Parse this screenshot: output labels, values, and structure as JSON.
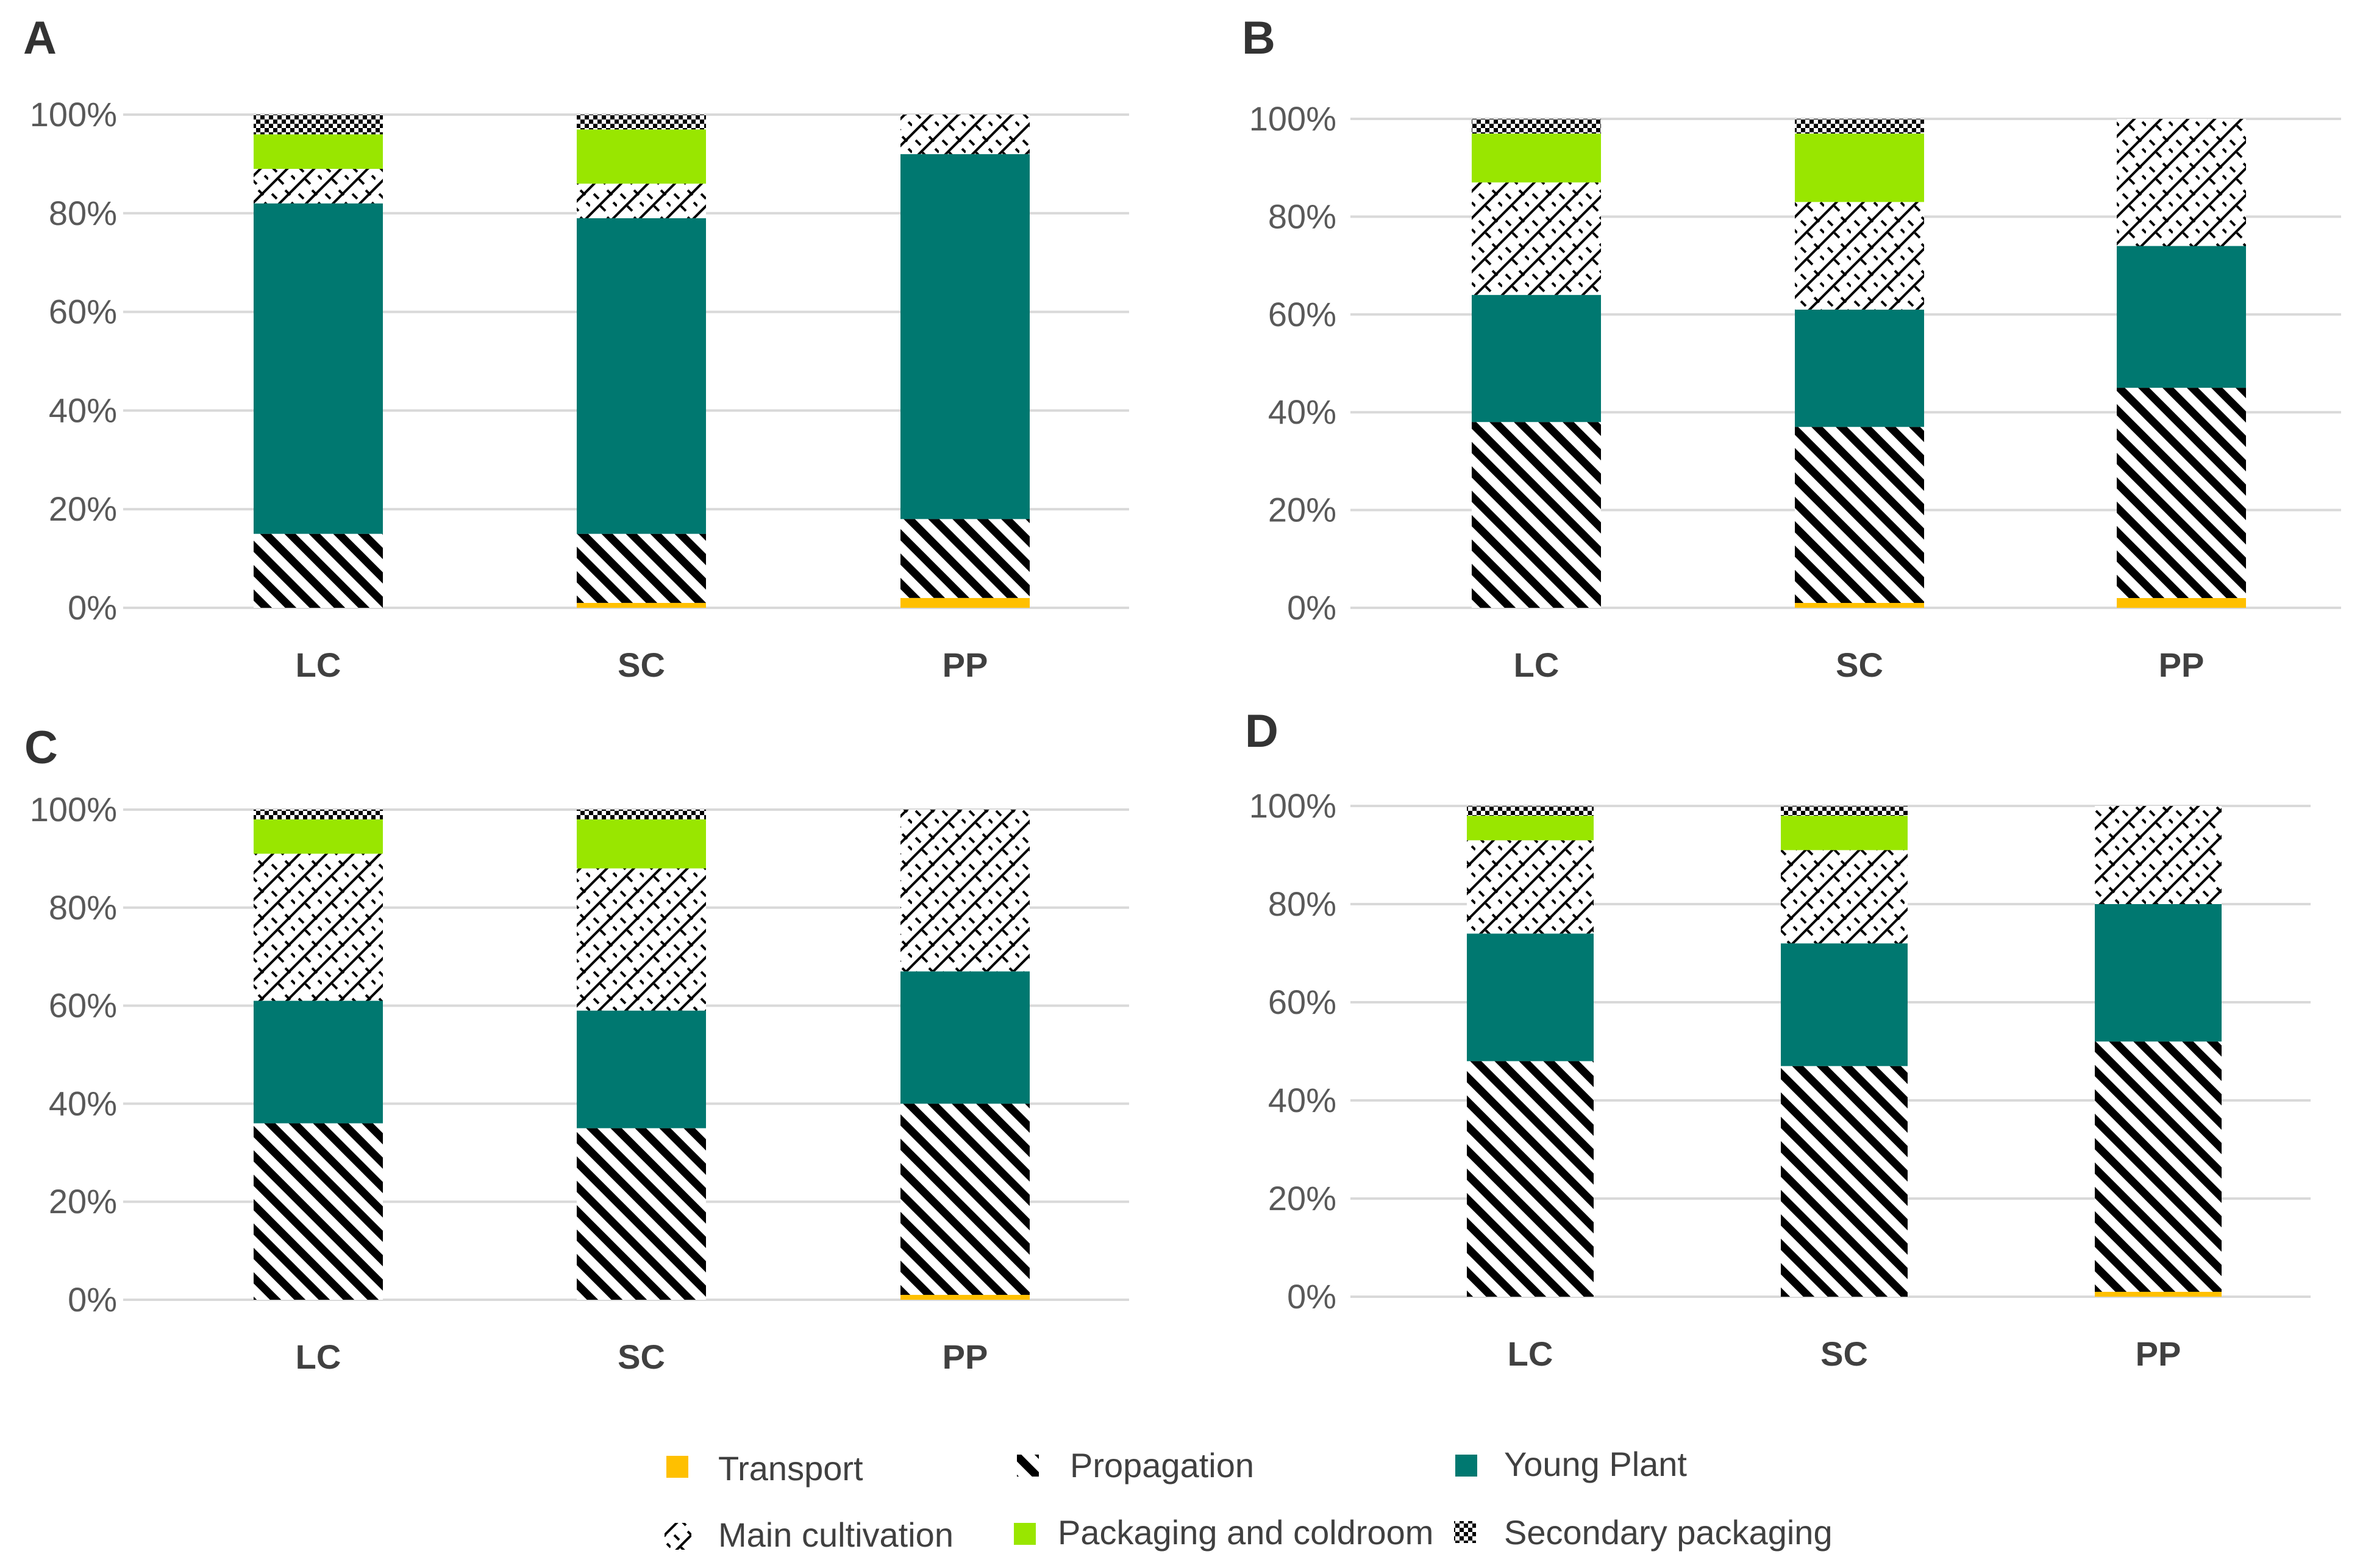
{
  "chart_data": [
    {
      "panel": "A",
      "type": "bar",
      "stacked": true,
      "ylim": [
        0,
        100
      ],
      "yticks": [
        "0%",
        "20%",
        "40%",
        "60%",
        "80%",
        "100%"
      ],
      "categories": [
        "LC",
        "SC",
        "PP"
      ],
      "series": [
        {
          "name": "Transport",
          "values": [
            0,
            1,
            2
          ]
        },
        {
          "name": "Propagation",
          "values": [
            15,
            14,
            16
          ]
        },
        {
          "name": "Young Plant",
          "values": [
            67,
            64,
            74
          ]
        },
        {
          "name": "Main cultivation",
          "values": [
            7,
            7,
            8
          ]
        },
        {
          "name": "Packaging and coldroom",
          "values": [
            7,
            11,
            0
          ]
        },
        {
          "name": "Secondary packaging",
          "values": [
            4,
            3,
            0
          ]
        }
      ]
    },
    {
      "panel": "B",
      "type": "bar",
      "stacked": true,
      "ylim": [
        0,
        100
      ],
      "yticks": [
        "0%",
        "20%",
        "40%",
        "60%",
        "80%",
        "100%"
      ],
      "categories": [
        "LC",
        "SC",
        "PP"
      ],
      "series": [
        {
          "name": "Transport",
          "values": [
            0,
            1,
            2
          ]
        },
        {
          "name": "Propagation",
          "values": [
            38,
            36,
            43
          ]
        },
        {
          "name": "Young Plant",
          "values": [
            26,
            24,
            29
          ]
        },
        {
          "name": "Main cultivation",
          "values": [
            23,
            22,
            26
          ]
        },
        {
          "name": "Packaging and coldroom",
          "values": [
            10,
            14,
            0
          ]
        },
        {
          "name": "Secondary packaging",
          "values": [
            3,
            3,
            0
          ]
        }
      ]
    },
    {
      "panel": "C",
      "type": "bar",
      "stacked": true,
      "ylim": [
        0,
        100
      ],
      "yticks": [
        "0%",
        "20%",
        "40%",
        "60%",
        "80%",
        "100%"
      ],
      "categories": [
        "LC",
        "SC",
        "PP"
      ],
      "series": [
        {
          "name": "Transport",
          "values": [
            0,
            0,
            1
          ]
        },
        {
          "name": "Propagation",
          "values": [
            36,
            35,
            39
          ]
        },
        {
          "name": "Young Plant",
          "values": [
            25,
            24,
            27
          ]
        },
        {
          "name": "Main cultivation",
          "values": [
            30,
            29,
            33
          ]
        },
        {
          "name": "Packaging and coldroom",
          "values": [
            7,
            10,
            0
          ]
        },
        {
          "name": "Secondary packaging",
          "values": [
            2,
            2,
            0
          ]
        }
      ]
    },
    {
      "panel": "D",
      "type": "bar",
      "stacked": true,
      "ylim": [
        0,
        100
      ],
      "yticks": [
        "0%",
        "20%",
        "40%",
        "60%",
        "80%",
        "100%"
      ],
      "categories": [
        "LC",
        "SC",
        "PP"
      ],
      "series": [
        {
          "name": "Transport",
          "values": [
            0,
            0,
            1
          ]
        },
        {
          "name": "Propagation",
          "values": [
            48,
            47,
            51
          ]
        },
        {
          "name": "Young Plant",
          "values": [
            26,
            25,
            28
          ]
        },
        {
          "name": "Main cultivation",
          "values": [
            19,
            19,
            20
          ]
        },
        {
          "name": "Packaging and coldroom",
          "values": [
            5,
            7,
            0
          ]
        },
        {
          "name": "Secondary packaging",
          "values": [
            2,
            2,
            0
          ]
        }
      ]
    }
  ],
  "legend": [
    {
      "name": "Transport",
      "style": "solid",
      "color": "#ffc000"
    },
    {
      "name": "Propagation",
      "style": "diagonal-stripes",
      "color": "#000000"
    },
    {
      "name": "Young Plant",
      "style": "solid",
      "color": "#007870"
    },
    {
      "name": "Main cultivation",
      "style": "zigzag-hatch",
      "color": "#000000"
    },
    {
      "name": "Packaging and coldroom",
      "style": "solid",
      "color": "#99e600"
    },
    {
      "name": "Secondary packaging",
      "style": "checker",
      "color": "#000000"
    }
  ]
}
